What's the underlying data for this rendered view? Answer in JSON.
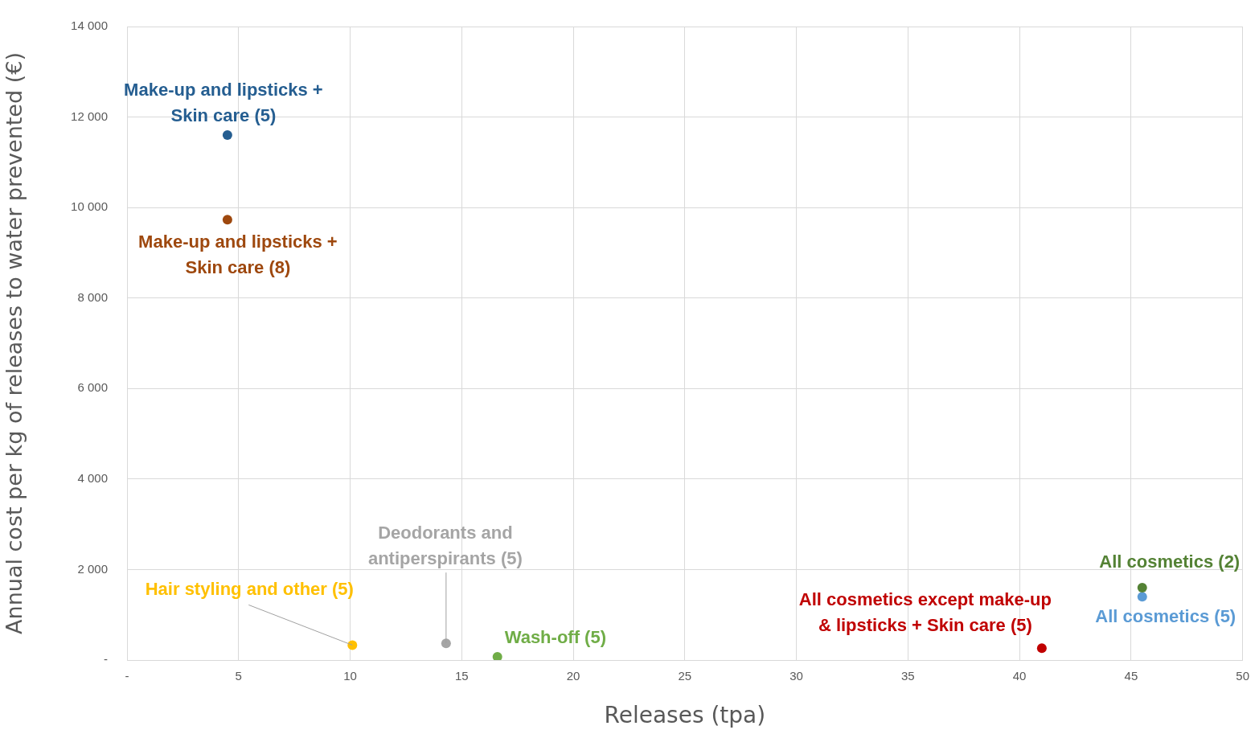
{
  "chart_data": {
    "type": "scatter",
    "xlabel": "Releases (tpa)",
    "ylabel": "Annual cost per kg of releases to water prevented (€)",
    "xlim": [
      0,
      50
    ],
    "xticks": [
      {
        "value": 0,
        "label": "-"
      },
      5,
      10,
      15,
      20,
      25,
      30,
      35,
      40,
      45,
      50
    ],
    "ylim": [
      0,
      14000
    ],
    "yticks": [
      {
        "value": 0,
        "label": "-"
      },
      {
        "value": 2000,
        "label": "2 000"
      },
      {
        "value": 4000,
        "label": "4 000"
      },
      {
        "value": 6000,
        "label": "6 000"
      },
      {
        "value": 8000,
        "label": "8 000"
      },
      {
        "value": 10000,
        "label": "10 000"
      },
      {
        "value": 12000,
        "label": "12 000"
      },
      {
        "value": 14000,
        "label": "14 000"
      }
    ],
    "grid": true,
    "legend": false,
    "marker": "circle",
    "series": [
      {
        "name": "Make-up and lipsticks + Skin care (5)",
        "color": "#255e91",
        "x": [
          4.5
        ],
        "values": [
          11600
        ]
      },
      {
        "name": "Make-up and lipsticks + Skin care (8)",
        "color": "#9e480e",
        "x": [
          4.5
        ],
        "values": [
          9730
        ]
      },
      {
        "name": "Hair styling and other (5)",
        "color": "#ffc000",
        "x": [
          10.1
        ],
        "values": [
          330
        ]
      },
      {
        "name": "Deodorants and antiperspirants (5)",
        "color": "#a5a5a5",
        "x": [
          14.3
        ],
        "values": [
          370
        ]
      },
      {
        "name": "Wash-off (5)",
        "color": "#70ad47",
        "x": [
          16.6
        ],
        "values": [
          70
        ]
      },
      {
        "name": "All cosmetics except make-up & lipsticks + Skin care (5)",
        "color": "#c00000",
        "x": [
          41.0
        ],
        "values": [
          260
        ]
      },
      {
        "name": "All cosmetics (2)",
        "color": "#548235",
        "x": [
          45.5
        ],
        "values": [
          1600
        ]
      },
      {
        "name": "All cosmetics (5)",
        "color": "#5b9bd5",
        "x": [
          45.5
        ],
        "values": [
          1400
        ]
      }
    ]
  }
}
